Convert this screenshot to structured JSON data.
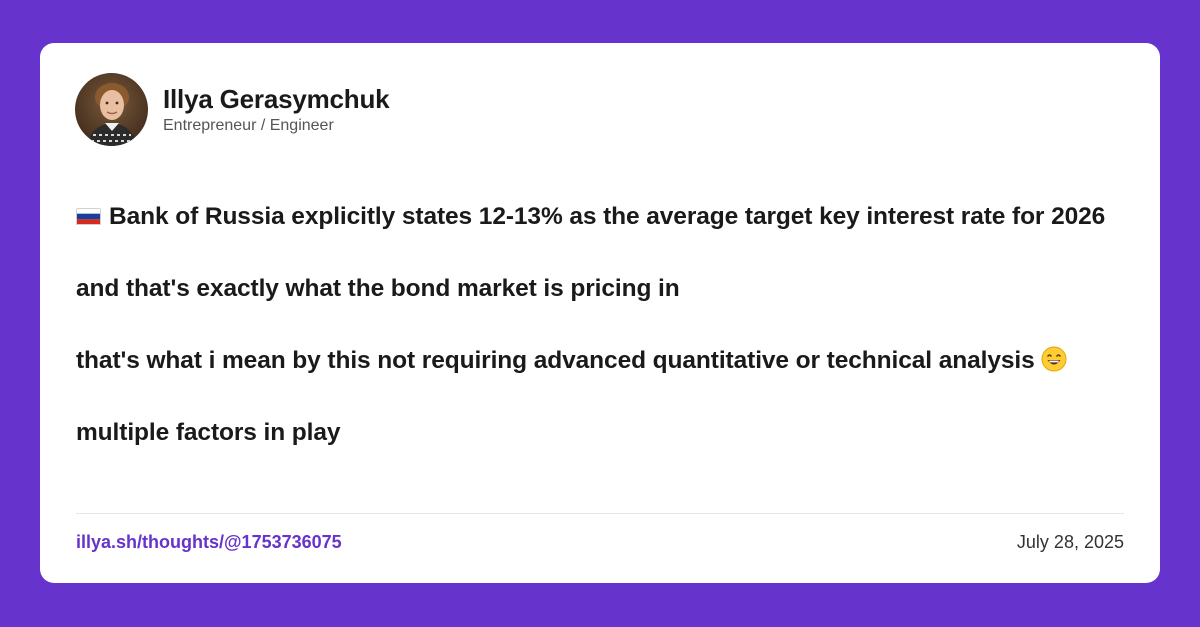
{
  "colors": {
    "background": "#6633cc",
    "card": "#ffffff",
    "link": "#6633cc",
    "text": "#1a1a1a"
  },
  "author": {
    "name": "Illya Gerasymchuk",
    "title": "Entrepreneur / Engineer",
    "avatar_icon": "profile-photo"
  },
  "post": {
    "flag_icon": "russia-flag-icon",
    "paragraphs": {
      "p1": "Bank of Russia explicitly states 12-13% as the average target key interest rate for 2026",
      "p2": "and that's exactly what the bond market is pricing in",
      "p3": "that's what i mean by this not requiring advanced quantitative or technical analysis",
      "p4": "multiple factors in play"
    },
    "emoji_icon": "grinning-face-icon"
  },
  "footer": {
    "link": "illya.sh/thoughts/@1753736075",
    "date": "July 28, 2025"
  }
}
